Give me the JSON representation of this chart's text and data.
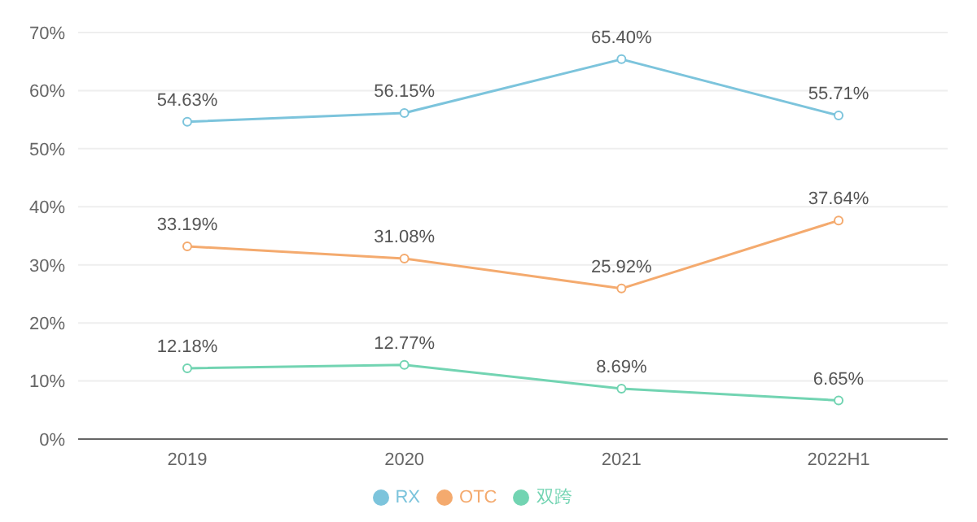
{
  "chart_data": {
    "type": "line",
    "categories": [
      "2019",
      "2020",
      "2021",
      "2022H1"
    ],
    "series": [
      {
        "name": "RX",
        "color": "#7cc4dc",
        "values": [
          54.63,
          56.15,
          65.4,
          55.71
        ],
        "value_labels": [
          "54.63%",
          "56.15%",
          "65.40%",
          "55.71%"
        ]
      },
      {
        "name": "OTC",
        "color": "#f4aa6e",
        "values": [
          33.19,
          31.08,
          25.92,
          37.64
        ],
        "value_labels": [
          "33.19%",
          "31.08%",
          "25.92%",
          "37.64%"
        ]
      },
      {
        "name": "双跨",
        "color": "#72d4b2",
        "values": [
          12.18,
          12.77,
          8.69,
          6.65
        ],
        "value_labels": [
          "12.18%",
          "12.77%",
          "8.69%",
          "6.65%"
        ]
      }
    ],
    "ylim": [
      0,
      70
    ],
    "yticks": [
      {
        "value": 0,
        "label": "0%"
      },
      {
        "value": 10,
        "label": "10%"
      },
      {
        "value": 20,
        "label": "20%"
      },
      {
        "value": 30,
        "label": "30%"
      },
      {
        "value": 40,
        "label": "40%"
      },
      {
        "value": 50,
        "label": "50%"
      },
      {
        "value": 60,
        "label": "60%"
      },
      {
        "value": 70,
        "label": "70%"
      }
    ],
    "grid": "y",
    "legend": "bottom",
    "marker": "circle",
    "line_style": "solid"
  }
}
